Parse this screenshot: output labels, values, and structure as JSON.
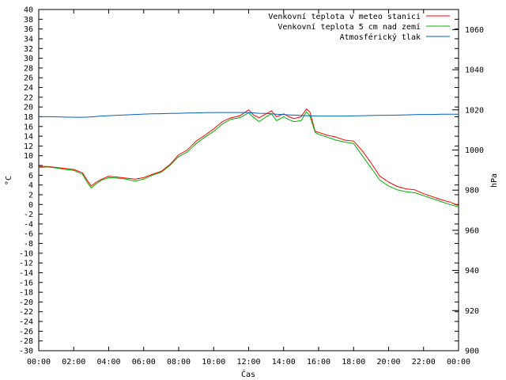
{
  "chart_data": {
    "type": "line",
    "title": "",
    "xlabel": "Čas",
    "ylabel": "°C",
    "y2label": "hPa",
    "xlim": [
      0,
      24
    ],
    "ylim": [
      -30,
      40
    ],
    "y2lim": [
      900,
      1070
    ],
    "x_ticks": [
      "00:00",
      "02:00",
      "04:00",
      "06:00",
      "08:00",
      "10:00",
      "12:00",
      "14:00",
      "16:00",
      "18:00",
      "20:00",
      "22:00",
      "00:00"
    ],
    "y_ticks": [
      -30,
      -28,
      -26,
      -24,
      -22,
      -20,
      -18,
      -16,
      -14,
      -12,
      -10,
      -8,
      -6,
      -4,
      -2,
      0,
      2,
      4,
      6,
      8,
      10,
      12,
      14,
      16,
      18,
      20,
      22,
      24,
      26,
      28,
      30,
      32,
      34,
      36,
      38,
      40
    ],
    "y2_ticks": [
      900,
      920,
      940,
      960,
      980,
      1000,
      1020,
      1040,
      1060
    ],
    "legend_position": "top-right",
    "grid": false,
    "x": [
      0,
      0.5,
      1,
      1.5,
      2,
      2.5,
      2.8,
      3,
      3.3,
      3.6,
      4,
      4.5,
      5,
      5.5,
      6,
      6.5,
      7,
      7.5,
      8,
      8.5,
      9,
      9.5,
      10,
      10.5,
      11,
      11.5,
      12,
      12.3,
      12.6,
      13,
      13.3,
      13.6,
      14,
      14.3,
      14.6,
      15,
      15.3,
      15.5,
      15.8,
      16,
      16.5,
      17,
      17.5,
      18,
      18.5,
      19,
      19.5,
      20,
      20.5,
      21,
      21.5,
      22,
      22.5,
      23,
      23.5,
      24
    ],
    "series": [
      {
        "name": "Venkovní teplota v meteo stanici",
        "color": "#ff0000",
        "axis": "left",
        "values": [
          7.8,
          7.8,
          7.6,
          7.4,
          7.2,
          6.5,
          4.8,
          3.8,
          4.6,
          5.2,
          5.8,
          5.6,
          5.4,
          5.2,
          5.5,
          6.2,
          6.8,
          8.2,
          10.2,
          11.2,
          13.0,
          14.2,
          15.5,
          17.0,
          17.8,
          18.2,
          19.4,
          18.3,
          17.8,
          18.6,
          19.2,
          18.0,
          18.6,
          18.0,
          17.6,
          18.0,
          19.6,
          19.0,
          15.0,
          14.8,
          14.2,
          13.8,
          13.2,
          13.0,
          11.0,
          8.5,
          5.8,
          4.6,
          3.7,
          3.2,
          3.0,
          2.2,
          1.6,
          1.0,
          0.5,
          -0.2
        ]
      },
      {
        "name": "Venkovní teplota 5 cm nad zemí",
        "color": "#00b000",
        "axis": "left",
        "values": [
          7.6,
          7.7,
          7.5,
          7.2,
          7.0,
          6.2,
          4.4,
          3.4,
          4.3,
          5.0,
          5.5,
          5.4,
          5.2,
          4.8,
          5.2,
          6.0,
          6.6,
          8.0,
          9.8,
          10.8,
          12.5,
          13.8,
          15.0,
          16.5,
          17.5,
          17.8,
          18.8,
          17.8,
          17.0,
          18.0,
          18.6,
          17.2,
          18.0,
          17.4,
          17.0,
          17.2,
          19.0,
          18.2,
          14.8,
          14.4,
          13.8,
          13.2,
          12.8,
          12.5,
          10.0,
          7.5,
          5.0,
          3.8,
          3.0,
          2.6,
          2.4,
          1.8,
          1.2,
          0.6,
          0.0,
          -0.5
        ]
      },
      {
        "name": "Atmosférický tlak",
        "color": "#0060c0",
        "axis": "right",
        "values": [
          1016.6,
          1016.6,
          1016.5,
          1016.4,
          1016.3,
          1016.3,
          1016.4,
          1016.5,
          1016.7,
          1016.9,
          1017.1,
          1017.3,
          1017.5,
          1017.7,
          1017.9,
          1018.0,
          1018.1,
          1018.2,
          1018.3,
          1018.4,
          1018.5,
          1018.6,
          1018.7,
          1018.7,
          1018.7,
          1018.7,
          1018.6,
          1018.5,
          1018.3,
          1018.2,
          1018.0,
          1017.8,
          1017.6,
          1017.5,
          1017.4,
          1017.2,
          1017.1,
          1017.0,
          1017.0,
          1016.9,
          1016.9,
          1016.9,
          1016.9,
          1017.0,
          1017.1,
          1017.2,
          1017.3,
          1017.3,
          1017.4,
          1017.5,
          1017.6,
          1017.7,
          1017.7,
          1017.8,
          1017.8,
          1017.8
        ]
      }
    ]
  }
}
